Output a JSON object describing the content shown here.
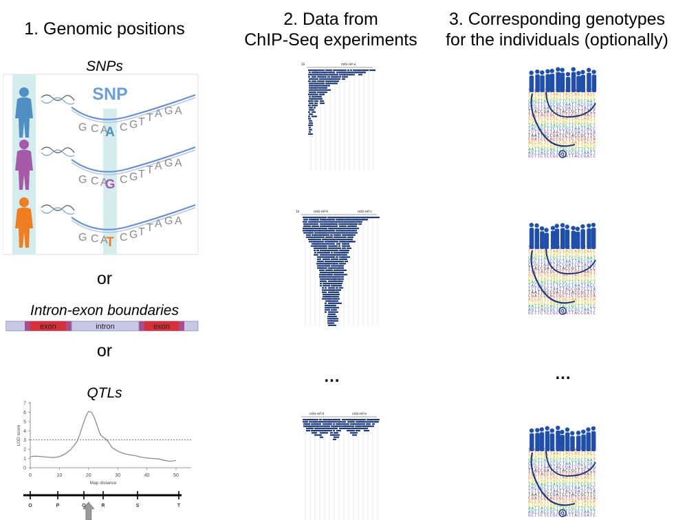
{
  "columns": {
    "col1_title": "1. Genomic positions",
    "col2_title": [
      "2. Data from",
      "ChIP-Seq experiments"
    ],
    "col3_title": [
      "3. Corresponding genotypes",
      "for the individuals (optionally)"
    ]
  },
  "snps": {
    "label": "SNPs",
    "snp_text": "SNP",
    "rows": [
      {
        "left": [
          "G",
          "C",
          "A"
        ],
        "variant": "A",
        "right": [
          "C",
          "G",
          "T",
          "T",
          "A",
          "G",
          "A"
        ],
        "person_color": "#4f8fc4",
        "variant_color": "#4f8fc4"
      },
      {
        "left": [
          "G",
          "C",
          "A"
        ],
        "variant": "G",
        "right": [
          "C",
          "G",
          "T",
          "T",
          "A",
          "G",
          "A"
        ],
        "person_color": "#a45aa8",
        "variant_color": "#a45aa8"
      },
      {
        "left": [
          "G",
          "C",
          "A"
        ],
        "variant": "T",
        "right": [
          "C",
          "G",
          "T",
          "T",
          "A",
          "G",
          "A"
        ],
        "person_color": "#ef7d22",
        "variant_color": "#ef7d22"
      }
    ]
  },
  "or_text": "or",
  "intron_exon": {
    "label": "Intron-exon boundaries",
    "segments": [
      "exon",
      "intron",
      "exon"
    ]
  },
  "qtl": {
    "label": "QTLs",
    "y_axis_label": "LOD score",
    "x_axis_label": "Map distance",
    "y_ticks": [
      "0",
      "1",
      "2",
      "3",
      "4",
      "5",
      "6",
      "7"
    ],
    "x_ticks": [
      "0",
      "10",
      "20",
      "30",
      "40",
      "50"
    ],
    "markers": [
      "O",
      "P",
      "Q",
      "R",
      "S",
      "T"
    ],
    "threshold": 3,
    "curve": [
      [
        0,
        1.2
      ],
      [
        2,
        1.25
      ],
      [
        4,
        1.2
      ],
      [
        6,
        1.15
      ],
      [
        8,
        1.1
      ],
      [
        10,
        1.2
      ],
      [
        12,
        1.5
      ],
      [
        14,
        2.0
      ],
      [
        16,
        2.8
      ],
      [
        17,
        3.6
      ],
      [
        18,
        4.6
      ],
      [
        19,
        5.5
      ],
      [
        20,
        6.1
      ],
      [
        21,
        6.0
      ],
      [
        22,
        5.4
      ],
      [
        23,
        4.5
      ],
      [
        24,
        3.6
      ],
      [
        25,
        3.3
      ],
      [
        26,
        3.1
      ],
      [
        27,
        2.7
      ],
      [
        28,
        2.2
      ],
      [
        30,
        1.8
      ],
      [
        32,
        1.55
      ],
      [
        34,
        1.4
      ],
      [
        36,
        1.3
      ],
      [
        38,
        1.15
      ],
      [
        40,
        1.05
      ],
      [
        42,
        1.0
      ],
      [
        44,
        0.95
      ],
      [
        46,
        0.8
      ],
      [
        48,
        0.7
      ],
      [
        50,
        0.78
      ]
    ]
  },
  "ellipsis": "...",
  "chip_tracks": [
    {
      "labels": [
        "ncbi-ref-a",
        "1k"
      ]
    },
    {
      "labels": [
        "1k",
        "ncbi-ref-b",
        "ncbi-ref-c"
      ]
    },
    {
      "labels": [
        "ncbi-ref-d",
        "ncbi-ref-e"
      ]
    }
  ],
  "genotype_text": "TACCGCTTCTCCGCTAATTACCAGTTACCGCTTCTCCGCTAATTACCGATCC"
}
